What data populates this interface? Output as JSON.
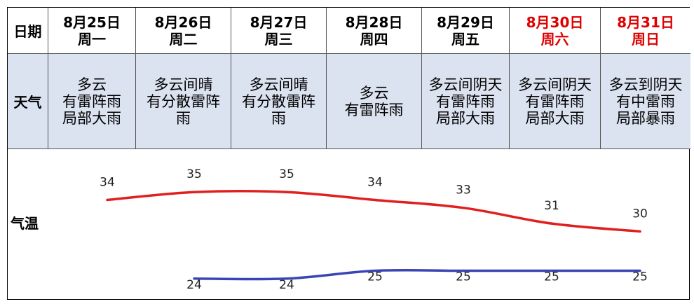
{
  "table": {
    "date_label": "日期",
    "weather_label": "天气",
    "temp_label": "气温",
    "days": [
      {
        "date": "8月25日",
        "weekday": "周一",
        "weekend": false,
        "weather": [
          "多云",
          "有雷阵雨",
          "局部大雨"
        ]
      },
      {
        "date": "8月26日",
        "weekday": "周二",
        "weekend": false,
        "weather": [
          "多云间晴",
          "有分散雷阵",
          "雨"
        ]
      },
      {
        "date": "8月27日",
        "weekday": "周三",
        "weekend": false,
        "weather": [
          "多云间晴",
          "有分散雷阵",
          "雨"
        ]
      },
      {
        "date": "8月28日",
        "weekday": "周四",
        "weekend": false,
        "weather": [
          "多云",
          "有雷阵雨"
        ]
      },
      {
        "date": "8月29日",
        "weekday": "周五",
        "weekend": false,
        "weather": [
          "多云间阴天",
          "有雷阵雨",
          "局部大雨"
        ]
      },
      {
        "date": "8月30日",
        "weekday": "周六",
        "weekend": true,
        "weather": [
          "多云间阴天",
          "有雷阵雨",
          "局部大雨"
        ]
      },
      {
        "date": "8月31日",
        "weekday": "周日",
        "weekend": true,
        "weather": [
          "多云到阴天",
          "有中雷雨",
          "局部暴雨"
        ]
      }
    ]
  },
  "colors": {
    "high": "#e02020",
    "low": "#3a45b5",
    "weekend": "#e00000",
    "weather_bg": "#dbe3f1"
  },
  "chart_data": {
    "type": "line",
    "categories": [
      "8月25日",
      "8月26日",
      "8月27日",
      "8月28日",
      "8月29日",
      "8月30日",
      "8月31日"
    ],
    "series": [
      {
        "name": "",
        "values": [
          34,
          35,
          35,
          34,
          33,
          31,
          30
        ]
      },
      {
        "name": "",
        "values": [
          null,
          24,
          24,
          25,
          25,
          25,
          25
        ]
      }
    ],
    "ylim": [
      23,
      36
    ],
    "grid": false,
    "legend": "none"
  }
}
